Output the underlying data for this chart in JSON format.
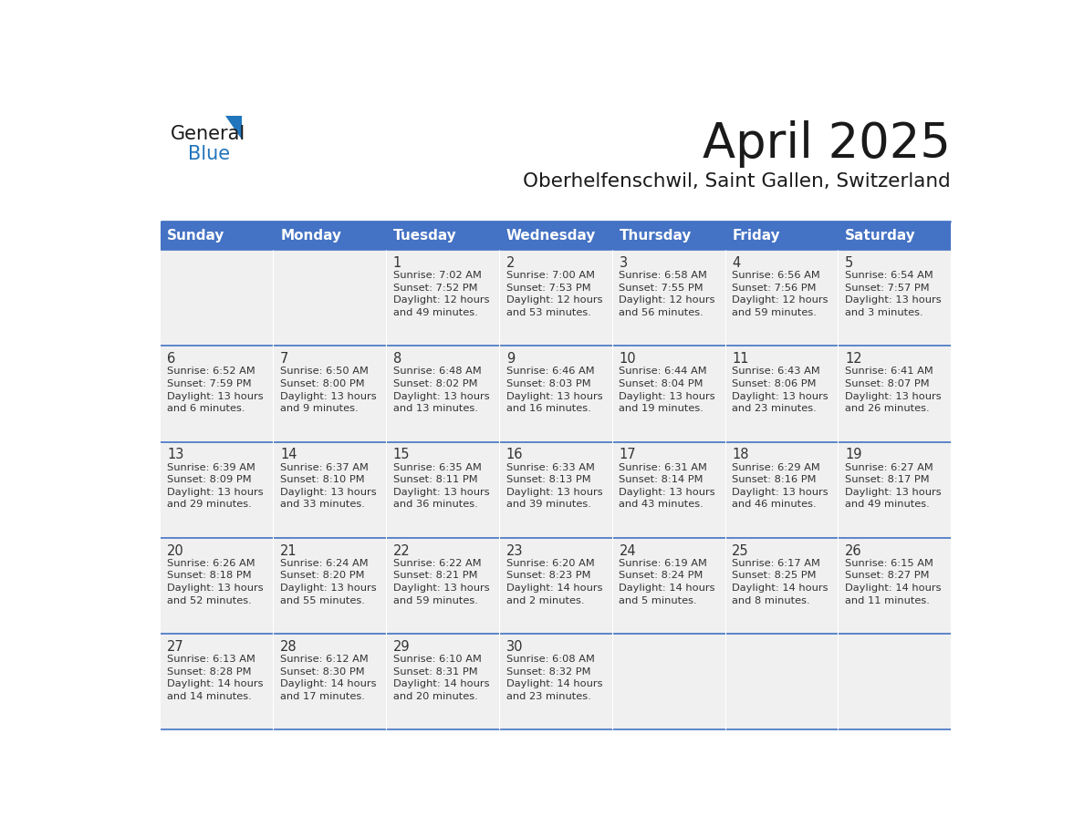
{
  "title": "April 2025",
  "subtitle": "Oberhelfenschwil, Saint Gallen, Switzerland",
  "header_color": "#4472C4",
  "header_text_color": "#FFFFFF",
  "grid_line_color": "#4472C4",
  "day_names": [
    "Sunday",
    "Monday",
    "Tuesday",
    "Wednesday",
    "Thursday",
    "Friday",
    "Saturday"
  ],
  "cell_bg_color": "#F0F0F0",
  "text_color": "#333333",
  "logo_general_color": "#1a1a1a",
  "logo_blue_color": "#2175BC",
  "weeks": [
    [
      {
        "day": "",
        "info": ""
      },
      {
        "day": "",
        "info": ""
      },
      {
        "day": "1",
        "info": "Sunrise: 7:02 AM\nSunset: 7:52 PM\nDaylight: 12 hours\nand 49 minutes."
      },
      {
        "day": "2",
        "info": "Sunrise: 7:00 AM\nSunset: 7:53 PM\nDaylight: 12 hours\nand 53 minutes."
      },
      {
        "day": "3",
        "info": "Sunrise: 6:58 AM\nSunset: 7:55 PM\nDaylight: 12 hours\nand 56 minutes."
      },
      {
        "day": "4",
        "info": "Sunrise: 6:56 AM\nSunset: 7:56 PM\nDaylight: 12 hours\nand 59 minutes."
      },
      {
        "day": "5",
        "info": "Sunrise: 6:54 AM\nSunset: 7:57 PM\nDaylight: 13 hours\nand 3 minutes."
      }
    ],
    [
      {
        "day": "6",
        "info": "Sunrise: 6:52 AM\nSunset: 7:59 PM\nDaylight: 13 hours\nand 6 minutes."
      },
      {
        "day": "7",
        "info": "Sunrise: 6:50 AM\nSunset: 8:00 PM\nDaylight: 13 hours\nand 9 minutes."
      },
      {
        "day": "8",
        "info": "Sunrise: 6:48 AM\nSunset: 8:02 PM\nDaylight: 13 hours\nand 13 minutes."
      },
      {
        "day": "9",
        "info": "Sunrise: 6:46 AM\nSunset: 8:03 PM\nDaylight: 13 hours\nand 16 minutes."
      },
      {
        "day": "10",
        "info": "Sunrise: 6:44 AM\nSunset: 8:04 PM\nDaylight: 13 hours\nand 19 minutes."
      },
      {
        "day": "11",
        "info": "Sunrise: 6:43 AM\nSunset: 8:06 PM\nDaylight: 13 hours\nand 23 minutes."
      },
      {
        "day": "12",
        "info": "Sunrise: 6:41 AM\nSunset: 8:07 PM\nDaylight: 13 hours\nand 26 minutes."
      }
    ],
    [
      {
        "day": "13",
        "info": "Sunrise: 6:39 AM\nSunset: 8:09 PM\nDaylight: 13 hours\nand 29 minutes."
      },
      {
        "day": "14",
        "info": "Sunrise: 6:37 AM\nSunset: 8:10 PM\nDaylight: 13 hours\nand 33 minutes."
      },
      {
        "day": "15",
        "info": "Sunrise: 6:35 AM\nSunset: 8:11 PM\nDaylight: 13 hours\nand 36 minutes."
      },
      {
        "day": "16",
        "info": "Sunrise: 6:33 AM\nSunset: 8:13 PM\nDaylight: 13 hours\nand 39 minutes."
      },
      {
        "day": "17",
        "info": "Sunrise: 6:31 AM\nSunset: 8:14 PM\nDaylight: 13 hours\nand 43 minutes."
      },
      {
        "day": "18",
        "info": "Sunrise: 6:29 AM\nSunset: 8:16 PM\nDaylight: 13 hours\nand 46 minutes."
      },
      {
        "day": "19",
        "info": "Sunrise: 6:27 AM\nSunset: 8:17 PM\nDaylight: 13 hours\nand 49 minutes."
      }
    ],
    [
      {
        "day": "20",
        "info": "Sunrise: 6:26 AM\nSunset: 8:18 PM\nDaylight: 13 hours\nand 52 minutes."
      },
      {
        "day": "21",
        "info": "Sunrise: 6:24 AM\nSunset: 8:20 PM\nDaylight: 13 hours\nand 55 minutes."
      },
      {
        "day": "22",
        "info": "Sunrise: 6:22 AM\nSunset: 8:21 PM\nDaylight: 13 hours\nand 59 minutes."
      },
      {
        "day": "23",
        "info": "Sunrise: 6:20 AM\nSunset: 8:23 PM\nDaylight: 14 hours\nand 2 minutes."
      },
      {
        "day": "24",
        "info": "Sunrise: 6:19 AM\nSunset: 8:24 PM\nDaylight: 14 hours\nand 5 minutes."
      },
      {
        "day": "25",
        "info": "Sunrise: 6:17 AM\nSunset: 8:25 PM\nDaylight: 14 hours\nand 8 minutes."
      },
      {
        "day": "26",
        "info": "Sunrise: 6:15 AM\nSunset: 8:27 PM\nDaylight: 14 hours\nand 11 minutes."
      }
    ],
    [
      {
        "day": "27",
        "info": "Sunrise: 6:13 AM\nSunset: 8:28 PM\nDaylight: 14 hours\nand 14 minutes."
      },
      {
        "day": "28",
        "info": "Sunrise: 6:12 AM\nSunset: 8:30 PM\nDaylight: 14 hours\nand 17 minutes."
      },
      {
        "day": "29",
        "info": "Sunrise: 6:10 AM\nSunset: 8:31 PM\nDaylight: 14 hours\nand 20 minutes."
      },
      {
        "day": "30",
        "info": "Sunrise: 6:08 AM\nSunset: 8:32 PM\nDaylight: 14 hours\nand 23 minutes."
      },
      {
        "day": "",
        "info": ""
      },
      {
        "day": "",
        "info": ""
      },
      {
        "day": "",
        "info": ""
      }
    ]
  ]
}
